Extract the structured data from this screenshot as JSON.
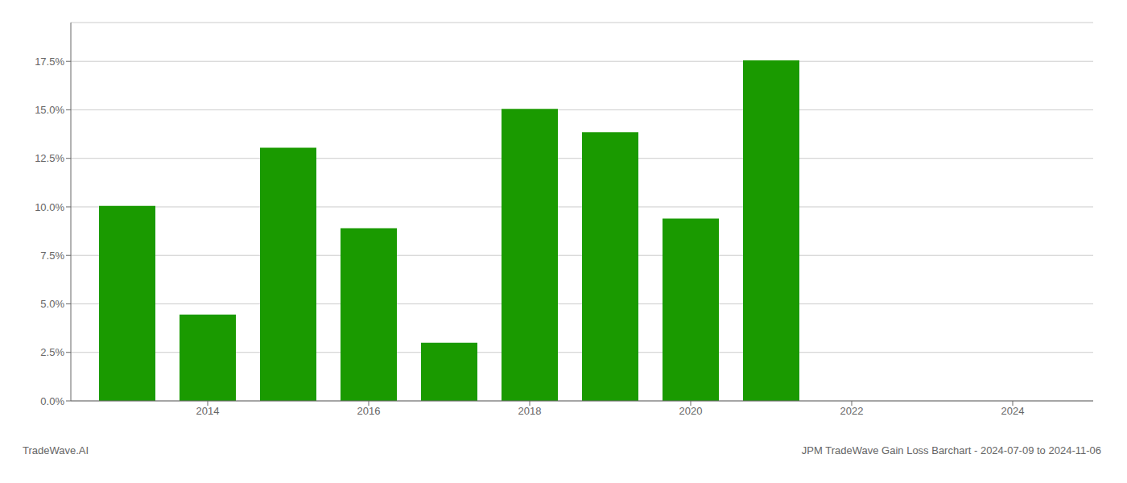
{
  "chart_data": {
    "type": "bar",
    "x": [
      2013,
      2014,
      2015,
      2016,
      2017,
      2018,
      2019,
      2020,
      2021,
      2022
    ],
    "values": [
      0.1005,
      0.0445,
      0.1305,
      0.089,
      0.03,
      0.1505,
      0.1385,
      0.094,
      0.1755,
      0.0
    ],
    "color": "#1a9a00",
    "xlim": [
      2012.3,
      2025.0
    ],
    "xticks": [
      2014,
      2016,
      2018,
      2020,
      2022,
      2024
    ],
    "ylim": [
      0.0,
      0.195
    ],
    "yticks": [
      {
        "value": 0.0,
        "label": "0.0%"
      },
      {
        "value": 0.025,
        "label": "2.5%"
      },
      {
        "value": 0.05,
        "label": "5.0%"
      },
      {
        "value": 0.075,
        "label": "7.5%"
      },
      {
        "value": 0.1,
        "label": "10.0%"
      },
      {
        "value": 0.125,
        "label": "12.5%"
      },
      {
        "value": 0.15,
        "label": "15.0%"
      },
      {
        "value": 0.175,
        "label": "17.5%"
      }
    ],
    "grid": "y",
    "annotations": [
      "TradeWave.AI",
      "JPM TradeWave Gain Loss Barchart - 2024-07-09 to 2024-11-06"
    ]
  }
}
